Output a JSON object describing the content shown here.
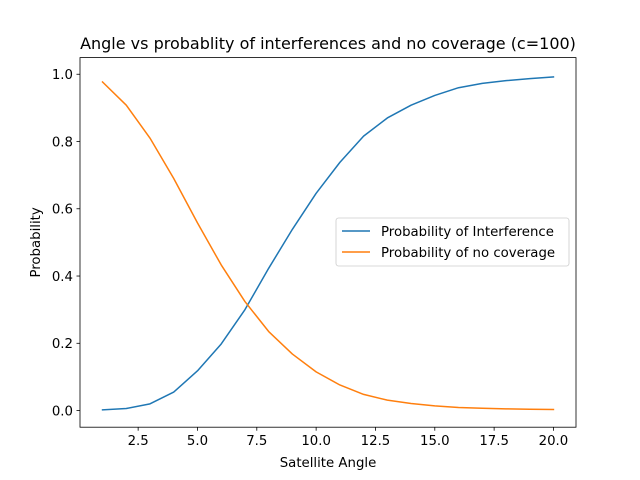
{
  "chart_data": {
    "type": "line",
    "title": "Angle vs probablity of interferences and no coverage (c=100)",
    "xlabel": "Satellite Angle",
    "ylabel": "Probability",
    "xlim": [
      0.05,
      20.95
    ],
    "ylim": [
      -0.0495,
      1.0495
    ],
    "x_ticks": [
      2.5,
      5.0,
      7.5,
      10.0,
      12.5,
      15.0,
      17.5,
      20.0
    ],
    "x_tick_labels": [
      "2.5",
      "5.0",
      "7.5",
      "10.0",
      "12.5",
      "15.0",
      "17.5",
      "20.0"
    ],
    "y_ticks": [
      0.0,
      0.2,
      0.4,
      0.6,
      0.8,
      1.0
    ],
    "y_tick_labels": [
      "0.0",
      "0.2",
      "0.4",
      "0.6",
      "0.8",
      "1.0"
    ],
    "grid": false,
    "legend_position": "center-right",
    "x": [
      1,
      2,
      3,
      4,
      5,
      6,
      7,
      8,
      9,
      10,
      11,
      12,
      13,
      14,
      15,
      16,
      17,
      18,
      19,
      20
    ],
    "series": [
      {
        "name": "Probability of Interference",
        "color": "#1f77b4",
        "values": [
          0.002,
          0.006,
          0.02,
          0.055,
          0.118,
          0.198,
          0.3,
          0.423,
          0.539,
          0.646,
          0.738,
          0.816,
          0.87,
          0.908,
          0.937,
          0.96,
          0.973,
          0.981,
          0.987,
          0.992
        ]
      },
      {
        "name": "Probability of no coverage",
        "color": "#ff7f0e",
        "values": [
          0.977,
          0.908,
          0.81,
          0.69,
          0.558,
          0.433,
          0.324,
          0.235,
          0.168,
          0.115,
          0.076,
          0.048,
          0.031,
          0.021,
          0.014,
          0.009,
          0.007,
          0.005,
          0.004,
          0.003
        ]
      }
    ]
  }
}
